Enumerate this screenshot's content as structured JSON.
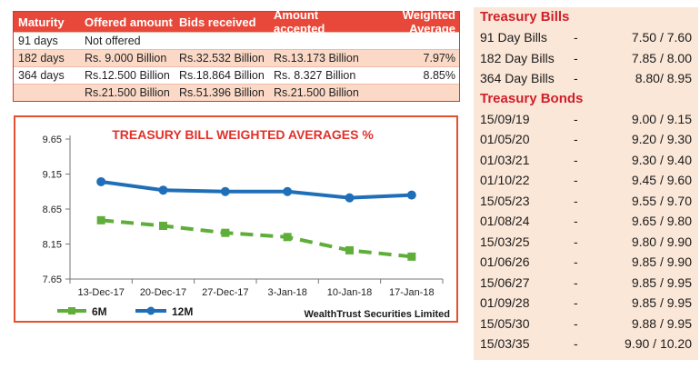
{
  "auction_table": {
    "headers": [
      "Maturity",
      "Offered amount",
      "Bids received",
      "Amount accepted",
      "Weighted Average"
    ],
    "rows": [
      [
        "91 days",
        "Not offered",
        "",
        "",
        ""
      ],
      [
        "182 days",
        "Rs.  9.000 Billion",
        "Rs.32.532 Billion",
        "Rs.13.173 Billion",
        "7.97%"
      ],
      [
        "364 days",
        "Rs.12.500 Billion",
        "Rs.18.864 Billion",
        "Rs.  8.327 Billion",
        "8.85%"
      ],
      [
        "",
        "Rs.21.500 Billion",
        "Rs.51.396 Billion",
        "Rs.21.500 Billion",
        ""
      ]
    ]
  },
  "chart_data": {
    "type": "line",
    "title": "TREASURY BILL WEIGHTED AVERAGES %",
    "categories": [
      "13-Dec-17",
      "20-Dec-17",
      "27-Dec-17",
      "3-Jan-18",
      "10-Jan-18",
      "17-Jan-18"
    ],
    "y_ticks": [
      "9.65",
      "9.15",
      "8.65",
      "8.15",
      "7.65"
    ],
    "ylim": [
      7.65,
      9.65
    ],
    "series": [
      {
        "name": "6M",
        "values": [
          8.49,
          8.41,
          8.31,
          8.25,
          8.06,
          7.97
        ],
        "color": "#5fae3a",
        "style": "dashed",
        "marker": "square"
      },
      {
        "name": "12M",
        "values": [
          9.04,
          8.92,
          8.9,
          8.9,
          8.81,
          8.85
        ],
        "color": "#1f6fb8",
        "style": "solid",
        "marker": "circle"
      }
    ],
    "legend_position": "bottom-left",
    "source": "WealthTrust Securities Limited",
    "grid": false
  },
  "rates_panel": {
    "bills_heading": "Treasury Bills",
    "bills": [
      {
        "name": "91 Day Bills",
        "sep": "-",
        "value": "7.50 / 7.60"
      },
      {
        "name": "182 Day Bills",
        "sep": "-",
        "value": "7.85 / 8.00"
      },
      {
        "name": "364 Day Bills",
        "sep": "-",
        "value": "8.80/ 8.95"
      }
    ],
    "bonds_heading": "Treasury Bonds",
    "bonds": [
      {
        "name": "15/09/19",
        "sep": "-",
        "value": "9.00 / 9.15"
      },
      {
        "name": "01/05/20",
        "sep": "-",
        "value": "9.20 / 9.30"
      },
      {
        "name": "01/03/21",
        "sep": "-",
        "value": "9.30 / 9.40"
      },
      {
        "name": "01/10/22",
        "sep": "-",
        "value": "9.45 / 9.60"
      },
      {
        "name": "15/05/23",
        "sep": "-",
        "value": "9.55 / 9.70"
      },
      {
        "name": "01/08/24",
        "sep": "-",
        "value": "9.65 / 9.80"
      },
      {
        "name": "15/03/25",
        "sep": "-",
        "value": "9.80 / 9.90"
      },
      {
        "name": "01/06/26",
        "sep": "-",
        "value": "9.85 / 9.90"
      },
      {
        "name": "15/06/27",
        "sep": "-",
        "value": "9.85 / 9.95"
      },
      {
        "name": "01/09/28",
        "sep": "-",
        "value": "9.85 / 9.95"
      },
      {
        "name": "15/05/30",
        "sep": "-",
        "value": "9.88 / 9.95"
      },
      {
        "name": "15/03/35",
        "sep": "-",
        "value": "9.90 / 10.20"
      }
    ]
  }
}
